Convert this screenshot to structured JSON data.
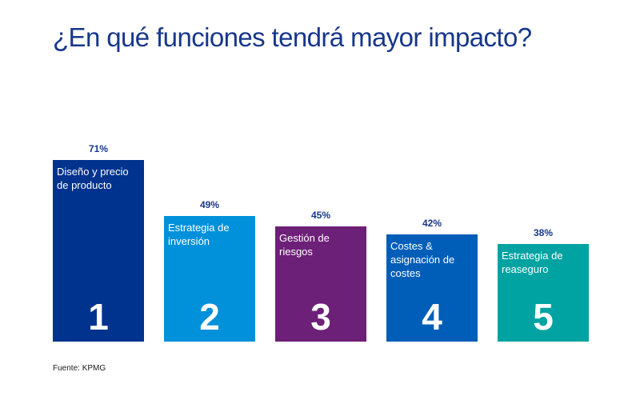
{
  "title": "¿En qué funciones tendrá mayor impacto?",
  "source": "Fuente: KPMG",
  "chart_data": {
    "type": "bar",
    "title": "¿En qué funciones tendrá mayor impacto?",
    "xlabel": "",
    "ylabel": "",
    "ylim": [
      0,
      75
    ],
    "grid": false,
    "legend": "none",
    "categories": [
      "Diseño y precio de producto",
      "Estrategia de inversión",
      "Gestión de riesgos",
      "Costes & asignación de costes",
      "Estrategia de reaseguro"
    ],
    "values": [
      71,
      49,
      45,
      42,
      38
    ],
    "value_labels": [
      "71%",
      "49%",
      "45%",
      "42%",
      "38%"
    ],
    "ranks": [
      "1",
      "2",
      "3",
      "4",
      "5"
    ],
    "colors": [
      "#00338d",
      "#0091da",
      "#6d2077",
      "#005eb8",
      "#00a3a1"
    ]
  }
}
